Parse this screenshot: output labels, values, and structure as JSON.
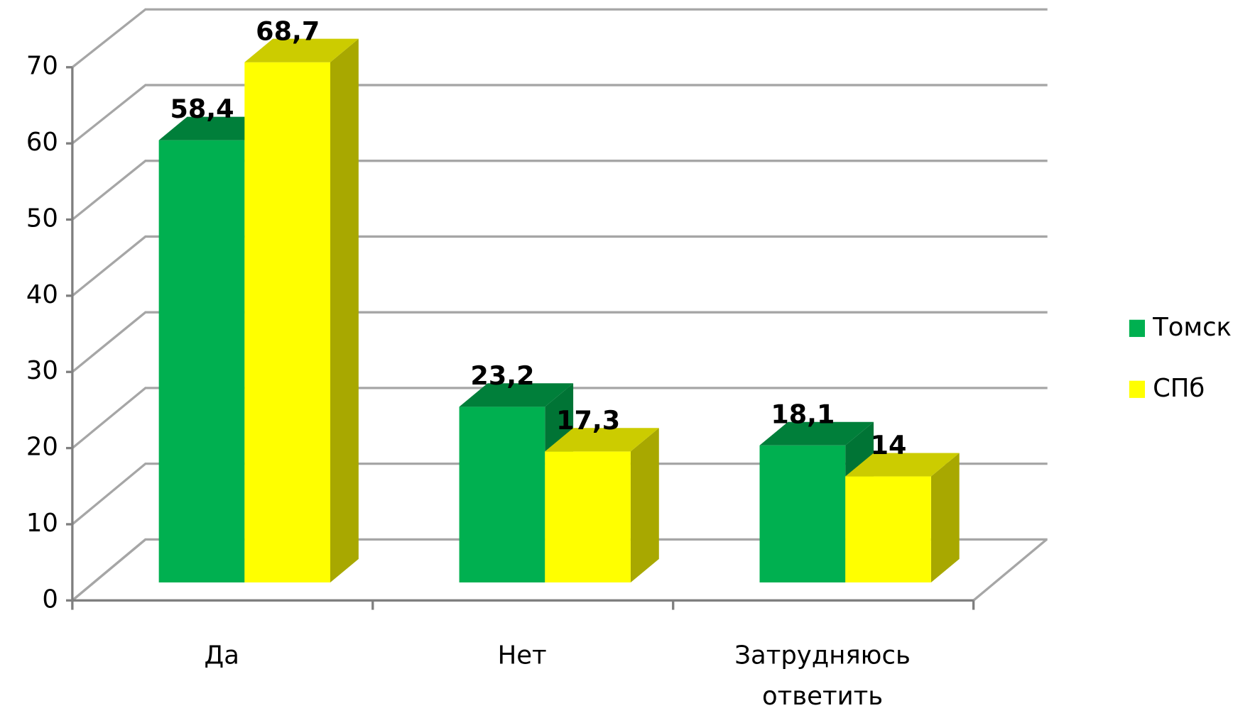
{
  "chart_data": {
    "type": "bar3d",
    "categories": [
      "Да",
      "Нет",
      "Затрудняюсь ответить"
    ],
    "series": [
      {
        "name": "Томск",
        "color": "#00b050",
        "values": [
          58.4,
          23.2,
          18.1
        ],
        "value_labels": [
          "58,4",
          "23,2",
          "18,1"
        ]
      },
      {
        "name": "СПб",
        "color": "#ffff00",
        "values": [
          68.7,
          17.3,
          14
        ],
        "value_labels": [
          "68,7",
          "17,3",
          "14"
        ]
      }
    ],
    "ylim": [
      0,
      70
    ],
    "yticks": [
      0,
      10,
      20,
      30,
      40,
      50,
      60,
      70
    ],
    "grid": true,
    "legend": "right"
  }
}
